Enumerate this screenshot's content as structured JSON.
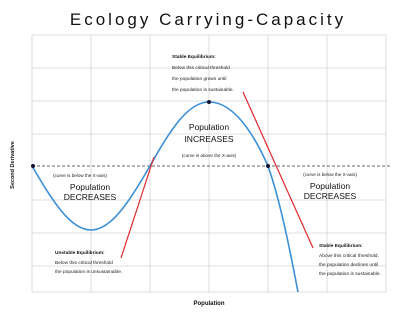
{
  "title": "Ecology Carrying-Capacity",
  "axes": {
    "x_label": "Population",
    "y_label": "Second Derivative"
  },
  "regions": [
    {
      "note": "(curve is above the X-axis)",
      "lines": [
        "Population",
        "INCREASES"
      ]
    },
    {
      "note": "(curve is below the X-axis)",
      "lines": [
        "Population",
        "DECREASES"
      ]
    },
    {
      "note": "(curve is below the X-axis)",
      "lines": [
        "Population",
        "DECREASES"
      ]
    }
  ],
  "annotations": [
    {
      "heading": "Stable Equilibrium:",
      "lines": [
        "Below this critical threshold",
        "the population grows until",
        "the population is sustainable."
      ]
    },
    {
      "heading": "Unstable Equilibrium:",
      "lines": [
        "Below this critical threshold",
        "the population is unsustainable."
      ]
    },
    {
      "heading": "Stable Equilibrium:",
      "lines": [
        "Above this critical threshold,",
        "the population declines until",
        "the population is sustainable."
      ]
    }
  ]
}
